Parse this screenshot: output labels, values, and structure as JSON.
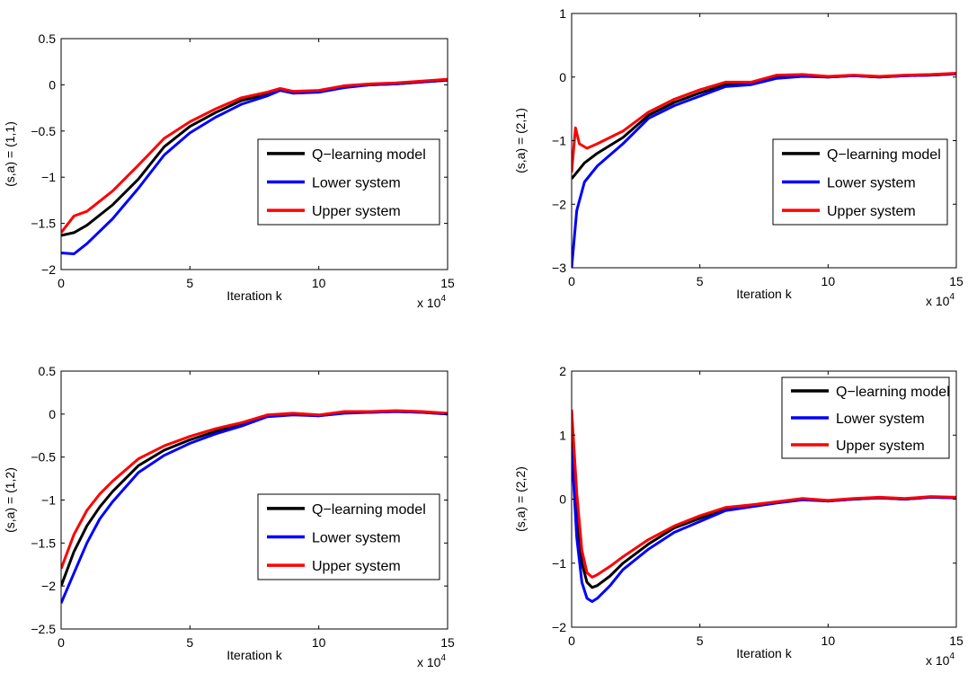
{
  "colors": {
    "model": "#000000",
    "lower": "#0000ff",
    "upper": "#ff0000"
  },
  "legend_labels": [
    "Q−learning model",
    "Lower system",
    "Upper system"
  ],
  "xlabel": "Iteration k",
  "x_multiplier": {
    "base": "x 10",
    "exponent": "4"
  },
  "chart_data": [
    {
      "type": "line",
      "ylabel": "(s,a) = (1,1)",
      "xlim": [
        0,
        15
      ],
      "ylim": [
        -2,
        0.5
      ],
      "xticks": [
        "0",
        "5",
        "10",
        "15"
      ],
      "yticks": [
        "−2",
        "−1.5",
        "−1",
        "−0.5",
        "0",
        "0.5"
      ],
      "legend_position": "right",
      "series": [
        {
          "name": "Q−learning model",
          "x": [
            0,
            0.5,
            1,
            2,
            3,
            4,
            5,
            6,
            7,
            8,
            8.5,
            9,
            10,
            11,
            12,
            13,
            14,
            15
          ],
          "y": [
            -1.63,
            -1.6,
            -1.52,
            -1.3,
            -1.02,
            -0.67,
            -0.45,
            -0.3,
            -0.17,
            -0.1,
            -0.05,
            -0.08,
            -0.07,
            -0.02,
            0,
            0.01,
            0.03,
            0.05
          ]
        },
        {
          "name": "Lower system",
          "x": [
            0,
            0.5,
            1,
            2,
            3,
            4,
            5,
            6,
            7,
            8,
            8.5,
            9,
            10,
            11,
            12,
            13,
            14,
            15
          ],
          "y": [
            -1.82,
            -1.83,
            -1.72,
            -1.45,
            -1.12,
            -0.76,
            -0.52,
            -0.35,
            -0.21,
            -0.12,
            -0.06,
            -0.09,
            -0.08,
            -0.03,
            0,
            0.01,
            0.03,
            0.05
          ]
        },
        {
          "name": "Upper system",
          "x": [
            0,
            0.5,
            1,
            2,
            3,
            4,
            5,
            6,
            7,
            8,
            8.5,
            9,
            10,
            11,
            12,
            13,
            14,
            15
          ],
          "y": [
            -1.6,
            -1.42,
            -1.37,
            -1.15,
            -0.87,
            -0.58,
            -0.4,
            -0.26,
            -0.14,
            -0.08,
            -0.04,
            -0.07,
            -0.06,
            -0.01,
            0.01,
            0.02,
            0.04,
            0.06
          ]
        }
      ]
    },
    {
      "type": "line",
      "ylabel": "(s,a) = (2,1)",
      "xlim": [
        0,
        15
      ],
      "ylim": [
        -3,
        1
      ],
      "xticks": [
        "0",
        "5",
        "10",
        "15"
      ],
      "yticks": [
        "−3",
        "−2",
        "−1",
        "0",
        "1"
      ],
      "legend_position": "right",
      "series": [
        {
          "name": "Q−learning model",
          "x": [
            0,
            0.2,
            0.5,
            1,
            2,
            3,
            4,
            5,
            6,
            7,
            8,
            9,
            10,
            11,
            12,
            13,
            14,
            15
          ],
          "y": [
            -1.6,
            -1.5,
            -1.35,
            -1.2,
            -0.95,
            -0.6,
            -0.4,
            -0.25,
            -0.12,
            -0.1,
            0,
            0.02,
            0,
            0.02,
            0,
            0.02,
            0.03,
            0.05
          ]
        },
        {
          "name": "Lower system",
          "x": [
            0,
            0.2,
            0.5,
            1,
            2,
            3,
            4,
            5,
            6,
            7,
            8,
            9,
            10,
            11,
            12,
            13,
            14,
            15
          ],
          "y": [
            -3,
            -2.1,
            -1.65,
            -1.4,
            -1.05,
            -0.65,
            -0.45,
            -0.3,
            -0.15,
            -0.12,
            -0.02,
            0.01,
            0,
            0.02,
            0,
            0.02,
            0.03,
            0.05
          ]
        },
        {
          "name": "Upper system",
          "x": [
            0,
            0.15,
            0.3,
            0.6,
            1,
            2,
            3,
            4,
            5,
            6,
            7,
            8,
            9,
            10,
            11,
            12,
            13,
            14,
            15
          ],
          "y": [
            -1.5,
            -0.8,
            -1.05,
            -1.12,
            -1.05,
            -0.85,
            -0.55,
            -0.35,
            -0.2,
            -0.08,
            -0.08,
            0.03,
            0.04,
            0.01,
            0.03,
            0.01,
            0.03,
            0.04,
            0.06
          ]
        }
      ]
    },
    {
      "type": "line",
      "ylabel": "(s,a) = (1,2)",
      "xlim": [
        0,
        15
      ],
      "ylim": [
        -2.5,
        0.5
      ],
      "xticks": [
        "0",
        "5",
        "10",
        "15"
      ],
      "yticks": [
        "−2.5",
        "−2",
        "−1.5",
        "−1",
        "−0.5",
        "0",
        "0.5"
      ],
      "legend_position": "right",
      "series": [
        {
          "name": "Q−learning model",
          "x": [
            0,
            0.5,
            1,
            1.5,
            2,
            3,
            4,
            5,
            6,
            7,
            8,
            9,
            10,
            11,
            12,
            13,
            14,
            15
          ],
          "y": [
            -2.0,
            -1.6,
            -1.3,
            -1.08,
            -0.9,
            -0.6,
            -0.42,
            -0.3,
            -0.2,
            -0.12,
            -0.02,
            0,
            -0.02,
            0.02,
            0.02,
            0.03,
            0.02,
            0
          ]
        },
        {
          "name": "Lower system",
          "x": [
            0,
            0.5,
            1,
            1.5,
            2,
            3,
            4,
            5,
            6,
            7,
            8,
            9,
            10,
            11,
            12,
            13,
            14,
            15
          ],
          "y": [
            -2.2,
            -1.85,
            -1.5,
            -1.22,
            -1.02,
            -0.68,
            -0.48,
            -0.34,
            -0.23,
            -0.14,
            -0.03,
            -0.01,
            -0.02,
            0.01,
            0.02,
            0.03,
            0.02,
            0
          ]
        },
        {
          "name": "Upper system",
          "x": [
            0,
            0.5,
            1,
            1.5,
            2,
            3,
            4,
            5,
            6,
            7,
            8,
            9,
            10,
            11,
            12,
            13,
            14,
            15
          ],
          "y": [
            -1.8,
            -1.4,
            -1.12,
            -0.93,
            -0.78,
            -0.52,
            -0.37,
            -0.26,
            -0.17,
            -0.1,
            -0.01,
            0.01,
            -0.01,
            0.03,
            0.03,
            0.04,
            0.03,
            0.01
          ]
        }
      ]
    },
    {
      "type": "line",
      "ylabel": "(s,a) = (2,2)",
      "xlim": [
        0,
        15
      ],
      "ylim": [
        -2,
        2
      ],
      "xticks": [
        "0",
        "5",
        "10",
        "15"
      ],
      "yticks": [
        "−2",
        "−1",
        "0",
        "1",
        "2"
      ],
      "legend_position": "top-right",
      "series": [
        {
          "name": "Q−learning model",
          "x": [
            0,
            0.2,
            0.4,
            0.6,
            0.8,
            1,
            1.5,
            2,
            3,
            4,
            5,
            6,
            7,
            8,
            9,
            10,
            11,
            12,
            13,
            14,
            15
          ],
          "y": [
            1.2,
            -0.2,
            -1.0,
            -1.3,
            -1.38,
            -1.35,
            -1.2,
            -1.0,
            -0.7,
            -0.45,
            -0.3,
            -0.15,
            -0.1,
            -0.05,
            0,
            -0.03,
            0,
            0.02,
            0,
            0.03,
            0.02
          ]
        },
        {
          "name": "Lower system",
          "x": [
            0,
            0.2,
            0.4,
            0.6,
            0.8,
            1,
            1.5,
            2,
            3,
            4,
            5,
            6,
            7,
            8,
            9,
            10,
            11,
            12,
            13,
            14,
            15
          ],
          "y": [
            0.8,
            -0.6,
            -1.3,
            -1.55,
            -1.6,
            -1.55,
            -1.35,
            -1.1,
            -0.78,
            -0.52,
            -0.35,
            -0.18,
            -0.12,
            -0.06,
            -0.01,
            -0.03,
            0,
            0.02,
            0,
            0.03,
            0.02
          ]
        },
        {
          "name": "Upper system",
          "x": [
            0,
            0.2,
            0.4,
            0.6,
            0.8,
            1,
            1.5,
            2,
            3,
            4,
            5,
            6,
            7,
            8,
            9,
            10,
            11,
            12,
            13,
            14,
            15
          ],
          "y": [
            1.4,
            0.1,
            -0.8,
            -1.15,
            -1.22,
            -1.18,
            -1.05,
            -0.9,
            -0.63,
            -0.42,
            -0.26,
            -0.13,
            -0.09,
            -0.04,
            0.01,
            -0.02,
            0.01,
            0.03,
            0.01,
            0.04,
            0.03
          ]
        }
      ]
    }
  ]
}
